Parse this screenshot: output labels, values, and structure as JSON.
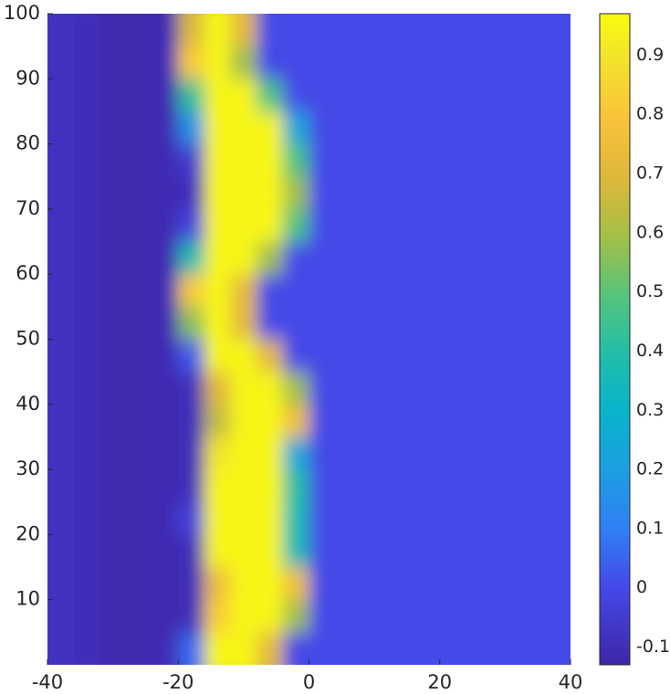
{
  "chart_data": {
    "type": "heatmap",
    "colormap": "parula",
    "x": [
      -38,
      -34,
      -30,
      -26,
      -22,
      -18,
      -14,
      -10,
      -6,
      -2,
      2,
      6,
      10,
      14,
      18,
      22,
      26,
      30,
      34,
      38
    ],
    "y": [
      2.5,
      7.5,
      12.5,
      17.5,
      22.5,
      27.5,
      32.5,
      37.5,
      42.5,
      47.5,
      52.5,
      57.5,
      62.5,
      67.5,
      72.5,
      77.5,
      82.5,
      87.5,
      92.5,
      97.5
    ],
    "values": [
      [
        -0.08,
        -0.1,
        -0.12,
        -0.12,
        -0.11,
        0.06,
        0.95,
        0.95,
        0.71,
        0,
        0,
        0,
        0,
        0,
        0,
        0,
        0,
        0,
        0,
        0
      ],
      [
        -0.08,
        -0.1,
        -0.12,
        -0.12,
        -0.11,
        -0.1,
        0.83,
        0.95,
        0.95,
        0.59,
        0,
        0,
        0,
        0,
        0,
        0,
        0,
        0,
        0,
        0
      ],
      [
        -0.08,
        -0.1,
        -0.12,
        -0.12,
        -0.11,
        -0.1,
        0.75,
        0.95,
        0.95,
        0.76,
        0,
        0,
        0,
        0,
        0,
        0,
        0,
        0,
        0,
        0
      ],
      [
        -0.08,
        -0.1,
        -0.12,
        -0.12,
        -0.11,
        -0.1,
        0.95,
        0.95,
        0.95,
        0.36,
        0,
        0,
        0,
        0,
        0,
        0,
        0,
        0,
        0,
        0
      ],
      [
        -0.08,
        -0.1,
        -0.12,
        -0.12,
        -0.11,
        -0.02,
        0.95,
        0.95,
        0.95,
        0.36,
        0,
        0,
        0,
        0,
        0,
        0,
        0,
        0,
        0,
        0
      ],
      [
        -0.08,
        -0.1,
        -0.12,
        -0.12,
        -0.11,
        -0.1,
        0.95,
        0.95,
        0.95,
        0.4,
        0,
        0,
        0,
        0,
        0,
        0,
        0,
        0,
        0,
        0
      ],
      [
        -0.08,
        -0.1,
        -0.12,
        -0.12,
        -0.11,
        -0.1,
        0.9,
        0.95,
        0.95,
        0.24,
        0,
        0,
        0,
        0,
        0,
        0,
        0,
        0,
        0,
        0
      ],
      [
        -0.08,
        -0.1,
        -0.12,
        -0.12,
        -0.11,
        -0.1,
        0.65,
        0.95,
        0.95,
        0.76,
        0,
        0,
        0,
        0,
        0,
        0,
        0,
        0,
        0,
        0
      ],
      [
        -0.08,
        -0.1,
        -0.12,
        -0.12,
        -0.11,
        -0.1,
        0.7,
        0.95,
        0.95,
        0.59,
        0,
        0,
        0,
        0,
        0,
        0,
        0,
        0,
        0,
        0
      ],
      [
        -0.08,
        -0.1,
        -0.12,
        -0.12,
        -0.11,
        0.03,
        0.95,
        0.95,
        0.71,
        0,
        0,
        0,
        0,
        0,
        0,
        0,
        0,
        0,
        0,
        0
      ],
      [
        -0.08,
        -0.1,
        -0.12,
        -0.12,
        -0.11,
        0.56,
        0.95,
        0.71,
        0,
        0,
        0,
        0,
        0,
        0,
        0,
        0,
        0,
        0,
        0,
        0
      ],
      [
        -0.08,
        -0.1,
        -0.12,
        -0.12,
        -0.11,
        0.82,
        0.95,
        0.71,
        0,
        0,
        0,
        0,
        0,
        0,
        0,
        0,
        0,
        0,
        0,
        0
      ],
      [
        -0.08,
        -0.1,
        -0.12,
        -0.12,
        -0.11,
        0.37,
        0.95,
        0.95,
        0.59,
        0,
        0,
        0,
        0,
        0,
        0,
        0,
        0,
        0,
        0,
        0
      ],
      [
        -0.08,
        -0.1,
        -0.12,
        -0.12,
        -0.11,
        -0.02,
        0.95,
        0.95,
        0.95,
        0.48,
        0,
        0,
        0,
        0,
        0,
        0,
        0,
        0,
        0,
        0
      ],
      [
        -0.08,
        -0.1,
        -0.12,
        -0.12,
        -0.11,
        -0.1,
        0.95,
        0.95,
        0.95,
        0.59,
        0,
        0,
        0,
        0,
        0,
        0,
        0,
        0,
        0,
        0
      ],
      [
        -0.08,
        -0.1,
        -0.12,
        -0.12,
        -0.11,
        -0.05,
        0.95,
        0.95,
        0.95,
        0.48,
        0,
        0,
        0,
        0,
        0,
        0,
        0,
        0,
        0,
        0
      ],
      [
        -0.08,
        -0.1,
        -0.12,
        -0.12,
        -0.11,
        0.16,
        0.95,
        0.95,
        0.95,
        0.24,
        0,
        0,
        0,
        0,
        0,
        0,
        0,
        0,
        0,
        0
      ],
      [
        -0.08,
        -0.1,
        -0.12,
        -0.12,
        -0.11,
        0.43,
        0.95,
        0.95,
        0.48,
        0,
        0,
        0,
        0,
        0,
        0,
        0,
        0,
        0,
        0,
        0
      ],
      [
        -0.08,
        -0.1,
        -0.12,
        -0.12,
        -0.11,
        0.82,
        0.95,
        0.59,
        0,
        0,
        0,
        0,
        0,
        0,
        0,
        0,
        0,
        0,
        0,
        0
      ],
      [
        -0.08,
        -0.1,
        -0.12,
        -0.12,
        -0.11,
        0.69,
        0.95,
        0.71,
        0,
        0,
        0,
        0,
        0,
        0,
        0,
        0,
        0,
        0,
        0,
        0
      ]
    ],
    "xlim": [
      -40,
      40
    ],
    "xticks": [
      -40,
      -20,
      0,
      20,
      40
    ],
    "ylim": [
      0,
      100
    ],
    "yticks": [
      10,
      20,
      30,
      40,
      50,
      60,
      70,
      80,
      90,
      100
    ],
    "clim": [
      -0.13,
      0.97
    ],
    "cticks": [
      -0.1,
      0,
      0.1,
      0.2,
      0.3,
      0.4,
      0.5,
      0.6,
      0.7,
      0.8,
      0.9
    ]
  }
}
